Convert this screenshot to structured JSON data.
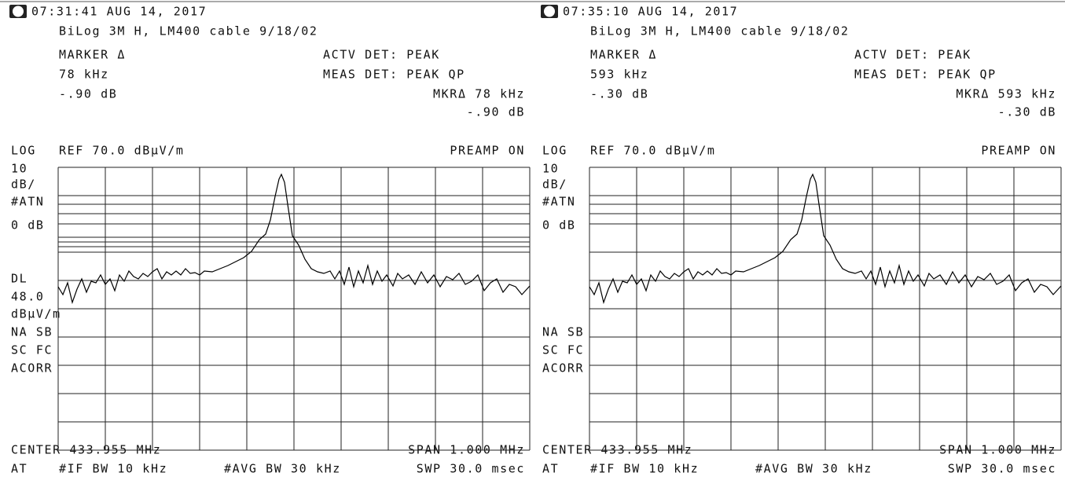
{
  "panels": [
    {
      "timestamp": "07:31:41 AUG 14, 2017",
      "setup": "BiLog 3M H,  LM400 cable  9/18/02",
      "marker_label": "MARKER Δ",
      "marker_freq": "78 kHz",
      "marker_level": "-.90 dB",
      "actv_det": "ACTV DET: PEAK",
      "meas_det": "MEAS DET: PEAK QP",
      "mkr_freq": "MKRΔ 78 kHz",
      "mkr_level": "-.90 dB",
      "log": "LOG",
      "ref": "REF 70.0 dBμV/m",
      "preamp": "PREAMP ON",
      "scale_labels": [
        "10",
        "dB/",
        "#ATN",
        "0 dB",
        "DL",
        "48.0",
        "dBμV/m",
        "NA SB",
        "SC FC",
        "ACORR"
      ],
      "center": "CENTER 433.955 MHz",
      "span": "SPAN 1.000 MHz",
      "at": "AT",
      "if_bw": "#IF BW 10 kHz",
      "avg_bw": "#AVG BW 30 kHz",
      "swp": "SWP 30.0 msec"
    },
    {
      "timestamp": "07:35:10 AUG 14, 2017",
      "setup": "BiLog 3M H,  LM400 cable  9/18/02",
      "marker_label": "MARKER Δ",
      "marker_freq": "593 kHz",
      "marker_level": "-.30 dB",
      "actv_det": "ACTV DET: PEAK",
      "meas_det": "MEAS DET: PEAK QP",
      "mkr_freq": "MKRΔ 593 kHz",
      "mkr_level": "-.30 dB",
      "log": "LOG",
      "ref": "REF 70.0 dBμV/m",
      "preamp": "PREAMP ON",
      "scale_labels": [
        "10",
        "dB/",
        "#ATN",
        "0 dB",
        "NA SB",
        "SC FC",
        "ACORR"
      ],
      "center": "CENTER 433.955 MHz",
      "span": "SPAN 1.000 MHz",
      "at": "AT",
      "if_bw": "#IF BW 10 kHz",
      "avg_bw": "#AVG BW 30 kHz",
      "swp": "SWP 30.0 msec"
    }
  ]
}
